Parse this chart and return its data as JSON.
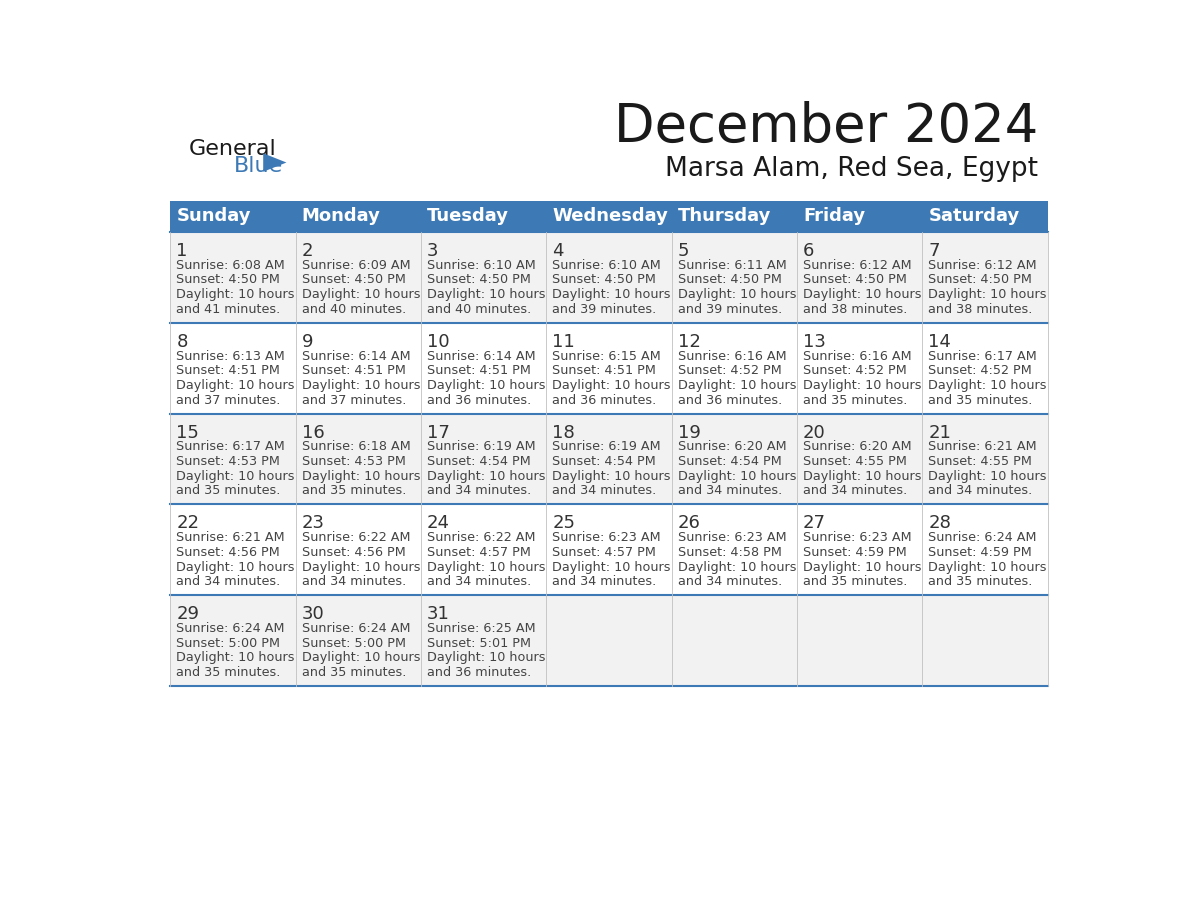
{
  "title": "December 2024",
  "subtitle": "Marsa Alam, Red Sea, Egypt",
  "days_of_week": [
    "Sunday",
    "Monday",
    "Tuesday",
    "Wednesday",
    "Thursday",
    "Friday",
    "Saturday"
  ],
  "header_bg": "#3d7ab5",
  "header_text": "#ffffff",
  "cell_bg_odd": "#f2f2f2",
  "cell_bg_even": "#ffffff",
  "cell_border": "#c0c0c0",
  "day_text_color": "#333333",
  "info_text_color": "#444444",
  "title_color": "#1a1a1a",
  "subtitle_color": "#1a1a1a",
  "logo_general_color": "#1a1a1a",
  "logo_blue_color": "#3d7ab5",
  "weeks": [
    {
      "days": [
        {
          "date": 1,
          "sunrise": "6:08 AM",
          "sunset": "4:50 PM",
          "daylight": "10 hours and 41 minutes."
        },
        {
          "date": 2,
          "sunrise": "6:09 AM",
          "sunset": "4:50 PM",
          "daylight": "10 hours and 40 minutes."
        },
        {
          "date": 3,
          "sunrise": "6:10 AM",
          "sunset": "4:50 PM",
          "daylight": "10 hours and 40 minutes."
        },
        {
          "date": 4,
          "sunrise": "6:10 AM",
          "sunset": "4:50 PM",
          "daylight": "10 hours and 39 minutes."
        },
        {
          "date": 5,
          "sunrise": "6:11 AM",
          "sunset": "4:50 PM",
          "daylight": "10 hours and 39 minutes."
        },
        {
          "date": 6,
          "sunrise": "6:12 AM",
          "sunset": "4:50 PM",
          "daylight": "10 hours and 38 minutes."
        },
        {
          "date": 7,
          "sunrise": "6:12 AM",
          "sunset": "4:50 PM",
          "daylight": "10 hours and 38 minutes."
        }
      ]
    },
    {
      "days": [
        {
          "date": 8,
          "sunrise": "6:13 AM",
          "sunset": "4:51 PM",
          "daylight": "10 hours and 37 minutes."
        },
        {
          "date": 9,
          "sunrise": "6:14 AM",
          "sunset": "4:51 PM",
          "daylight": "10 hours and 37 minutes."
        },
        {
          "date": 10,
          "sunrise": "6:14 AM",
          "sunset": "4:51 PM",
          "daylight": "10 hours and 36 minutes."
        },
        {
          "date": 11,
          "sunrise": "6:15 AM",
          "sunset": "4:51 PM",
          "daylight": "10 hours and 36 minutes."
        },
        {
          "date": 12,
          "sunrise": "6:16 AM",
          "sunset": "4:52 PM",
          "daylight": "10 hours and 36 minutes."
        },
        {
          "date": 13,
          "sunrise": "6:16 AM",
          "sunset": "4:52 PM",
          "daylight": "10 hours and 35 minutes."
        },
        {
          "date": 14,
          "sunrise": "6:17 AM",
          "sunset": "4:52 PM",
          "daylight": "10 hours and 35 minutes."
        }
      ]
    },
    {
      "days": [
        {
          "date": 15,
          "sunrise": "6:17 AM",
          "sunset": "4:53 PM",
          "daylight": "10 hours and 35 minutes."
        },
        {
          "date": 16,
          "sunrise": "6:18 AM",
          "sunset": "4:53 PM",
          "daylight": "10 hours and 35 minutes."
        },
        {
          "date": 17,
          "sunrise": "6:19 AM",
          "sunset": "4:54 PM",
          "daylight": "10 hours and 34 minutes."
        },
        {
          "date": 18,
          "sunrise": "6:19 AM",
          "sunset": "4:54 PM",
          "daylight": "10 hours and 34 minutes."
        },
        {
          "date": 19,
          "sunrise": "6:20 AM",
          "sunset": "4:54 PM",
          "daylight": "10 hours and 34 minutes."
        },
        {
          "date": 20,
          "sunrise": "6:20 AM",
          "sunset": "4:55 PM",
          "daylight": "10 hours and 34 minutes."
        },
        {
          "date": 21,
          "sunrise": "6:21 AM",
          "sunset": "4:55 PM",
          "daylight": "10 hours and 34 minutes."
        }
      ]
    },
    {
      "days": [
        {
          "date": 22,
          "sunrise": "6:21 AM",
          "sunset": "4:56 PM",
          "daylight": "10 hours and 34 minutes."
        },
        {
          "date": 23,
          "sunrise": "6:22 AM",
          "sunset": "4:56 PM",
          "daylight": "10 hours and 34 minutes."
        },
        {
          "date": 24,
          "sunrise": "6:22 AM",
          "sunset": "4:57 PM",
          "daylight": "10 hours and 34 minutes."
        },
        {
          "date": 25,
          "sunrise": "6:23 AM",
          "sunset": "4:57 PM",
          "daylight": "10 hours and 34 minutes."
        },
        {
          "date": 26,
          "sunrise": "6:23 AM",
          "sunset": "4:58 PM",
          "daylight": "10 hours and 34 minutes."
        },
        {
          "date": 27,
          "sunrise": "6:23 AM",
          "sunset": "4:59 PM",
          "daylight": "10 hours and 35 minutes."
        },
        {
          "date": 28,
          "sunrise": "6:24 AM",
          "sunset": "4:59 PM",
          "daylight": "10 hours and 35 minutes."
        }
      ]
    },
    {
      "days": [
        {
          "date": 29,
          "sunrise": "6:24 AM",
          "sunset": "5:00 PM",
          "daylight": "10 hours and 35 minutes."
        },
        {
          "date": 30,
          "sunrise": "6:24 AM",
          "sunset": "5:00 PM",
          "daylight": "10 hours and 35 minutes."
        },
        {
          "date": 31,
          "sunrise": "6:25 AM",
          "sunset": "5:01 PM",
          "daylight": "10 hours and 36 minutes."
        },
        null,
        null,
        null,
        null
      ]
    }
  ]
}
